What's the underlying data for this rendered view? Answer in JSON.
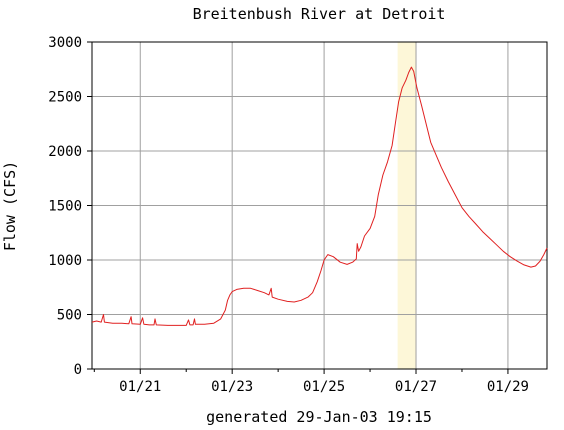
{
  "chart_data": {
    "type": "line",
    "title": "Breitenbush River at Detroit",
    "ylabel": "Flow (CFS)",
    "xlabel": "generated 29-Jan-03 19:15",
    "x_start_day": 19.95,
    "x_end_day": 29.85,
    "ylim": [
      0,
      3000
    ],
    "y_ticks": [
      0,
      500,
      1000,
      1500,
      2000,
      2500,
      3000
    ],
    "y_tick_labels": [
      "0",
      "500",
      "1000",
      "1500",
      "2000",
      "2500",
      "3000"
    ],
    "x_ticks": [
      21,
      23,
      25,
      27,
      29
    ],
    "x_tick_labels": [
      "01/21",
      "01/23",
      "01/25",
      "01/27",
      "01/29"
    ],
    "grid": true,
    "highlight": {
      "from_day": 26.6,
      "to_day": 27.0,
      "color": "#fdf7d8"
    },
    "series": [
      {
        "name": "",
        "color": "#e02020",
        "points": [
          [
            19.95,
            430
          ],
          [
            20.05,
            440
          ],
          [
            20.15,
            430
          ],
          [
            20.2,
            500
          ],
          [
            20.22,
            430
          ],
          [
            20.4,
            420
          ],
          [
            20.6,
            420
          ],
          [
            20.75,
            415
          ],
          [
            20.8,
            480
          ],
          [
            20.82,
            415
          ],
          [
            21.0,
            410
          ],
          [
            21.05,
            470
          ],
          [
            21.08,
            410
          ],
          [
            21.2,
            405
          ],
          [
            21.3,
            405
          ],
          [
            21.32,
            460
          ],
          [
            21.35,
            405
          ],
          [
            21.6,
            400
          ],
          [
            21.8,
            400
          ],
          [
            22.0,
            400
          ],
          [
            22.05,
            450
          ],
          [
            22.08,
            405
          ],
          [
            22.15,
            405
          ],
          [
            22.18,
            460
          ],
          [
            22.2,
            410
          ],
          [
            22.4,
            410
          ],
          [
            22.6,
            420
          ],
          [
            22.75,
            460
          ],
          [
            22.85,
            540
          ],
          [
            22.9,
            630
          ],
          [
            22.95,
            680
          ],
          [
            23.0,
            710
          ],
          [
            23.1,
            730
          ],
          [
            23.25,
            740
          ],
          [
            23.4,
            740
          ],
          [
            23.55,
            720
          ],
          [
            23.7,
            700
          ],
          [
            23.8,
            680
          ],
          [
            23.85,
            740
          ],
          [
            23.87,
            660
          ],
          [
            24.0,
            640
          ],
          [
            24.2,
            620
          ],
          [
            24.35,
            615
          ],
          [
            24.5,
            630
          ],
          [
            24.65,
            660
          ],
          [
            24.75,
            700
          ],
          [
            24.85,
            800
          ],
          [
            24.93,
            900
          ],
          [
            25.0,
            1000
          ],
          [
            25.08,
            1050
          ],
          [
            25.2,
            1030
          ],
          [
            25.35,
            980
          ],
          [
            25.5,
            960
          ],
          [
            25.62,
            980
          ],
          [
            25.7,
            1010
          ],
          [
            25.72,
            1150
          ],
          [
            25.75,
            1080
          ],
          [
            25.8,
            1120
          ],
          [
            25.88,
            1220
          ],
          [
            26.0,
            1290
          ],
          [
            26.1,
            1400
          ],
          [
            26.18,
            1600
          ],
          [
            26.28,
            1780
          ],
          [
            26.38,
            1900
          ],
          [
            26.48,
            2050
          ],
          [
            26.55,
            2250
          ],
          [
            26.62,
            2450
          ],
          [
            26.7,
            2580
          ],
          [
            26.78,
            2650
          ],
          [
            26.84,
            2720
          ],
          [
            26.9,
            2770
          ],
          [
            26.95,
            2730
          ],
          [
            27.02,
            2580
          ],
          [
            27.12,
            2420
          ],
          [
            27.22,
            2250
          ],
          [
            27.32,
            2080
          ],
          [
            27.42,
            1980
          ],
          [
            27.55,
            1850
          ],
          [
            27.7,
            1720
          ],
          [
            27.85,
            1600
          ],
          [
            28.0,
            1480
          ],
          [
            28.15,
            1400
          ],
          [
            28.3,
            1330
          ],
          [
            28.45,
            1260
          ],
          [
            28.6,
            1200
          ],
          [
            28.75,
            1140
          ],
          [
            28.9,
            1080
          ],
          [
            29.05,
            1030
          ],
          [
            29.2,
            990
          ],
          [
            29.35,
            955
          ],
          [
            29.5,
            935
          ],
          [
            29.6,
            945
          ],
          [
            29.7,
            990
          ],
          [
            29.78,
            1050
          ],
          [
            29.85,
            1110
          ]
        ]
      }
    ]
  }
}
